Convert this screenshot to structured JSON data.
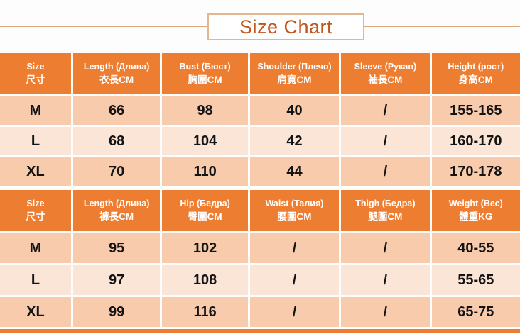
{
  "page": {
    "title": "Size Chart"
  },
  "colors": {
    "header_bg": "#ED7D31",
    "row_dark": "#F8CBAD",
    "row_light": "#FBE5D6",
    "title_text": "#C0551A",
    "rule_tan": "#D9A877"
  },
  "upper_table": {
    "headers": [
      {
        "line1": "Size",
        "line2": "尺寸"
      },
      {
        "line1": "Length (Длина)",
        "line2": "衣長CM"
      },
      {
        "line1": "Bust (Бюст)",
        "line2": "胸圍CM"
      },
      {
        "line1": "Shoulder (Плечо)",
        "line2": "肩寬CM"
      },
      {
        "line1": "Sleeve (Рукав)",
        "line2": "袖長CM"
      },
      {
        "line1": "Height (рост)",
        "line2": "身高CM"
      }
    ],
    "rows": [
      {
        "cells": [
          "M",
          "66",
          "98",
          "40",
          "/",
          "155-165"
        ]
      },
      {
        "cells": [
          "L",
          "68",
          "104",
          "42",
          "/",
          "160-170"
        ]
      },
      {
        "cells": [
          "XL",
          "70",
          "110",
          "44",
          "/",
          "170-178"
        ]
      }
    ]
  },
  "lower_table": {
    "headers": [
      {
        "line1": "Size",
        "line2": "尺寸"
      },
      {
        "line1": "Length (Длина)",
        "line2": "褲長CM"
      },
      {
        "line1": "Hip (Бедра)",
        "line2": "臀圍CM"
      },
      {
        "line1": "Waist (Талия)",
        "line2": "腰圍CM"
      },
      {
        "line1": "Thigh (Бедра)",
        "line2": "腿圍CM"
      },
      {
        "line1": "Weight (Вес)",
        "line2": "體重KG"
      }
    ],
    "rows": [
      {
        "cells": [
          "M",
          "95",
          "102",
          "/",
          "/",
          "40-55"
        ]
      },
      {
        "cells": [
          "L",
          "97",
          "108",
          "/",
          "/",
          "55-65"
        ]
      },
      {
        "cells": [
          "XL",
          "99",
          "116",
          "/",
          "/",
          "65-75"
        ]
      }
    ]
  },
  "chart_data": [
    {
      "type": "table",
      "title": "Size Chart",
      "columns": [
        "Size 尺寸",
        "Length (Длина) 衣長CM",
        "Bust (Бюст) 胸圍CM",
        "Shoulder (Плечо) 肩寬CM",
        "Sleeve (Рукав) 袖長CM",
        "Height (рост) 身高CM"
      ],
      "rows": [
        [
          "M",
          66,
          98,
          40,
          "/",
          "155-165"
        ],
        [
          "L",
          68,
          104,
          42,
          "/",
          "160-170"
        ],
        [
          "XL",
          70,
          110,
          44,
          "/",
          "170-178"
        ]
      ]
    },
    {
      "type": "table",
      "title": "Size Chart",
      "columns": [
        "Size 尺寸",
        "Length (Длина) 褲長CM",
        "Hip (Бедра) 臀圍CM",
        "Waist (Талия) 腰圍CM",
        "Thigh (Бедра) 腿圍CM",
        "Weight (Вес) 體重KG"
      ],
      "rows": [
        [
          "M",
          95,
          102,
          "/",
          "/",
          "40-55"
        ],
        [
          "L",
          97,
          108,
          "/",
          "/",
          "55-65"
        ],
        [
          "XL",
          99,
          116,
          "/",
          "/",
          "65-75"
        ]
      ]
    }
  ]
}
